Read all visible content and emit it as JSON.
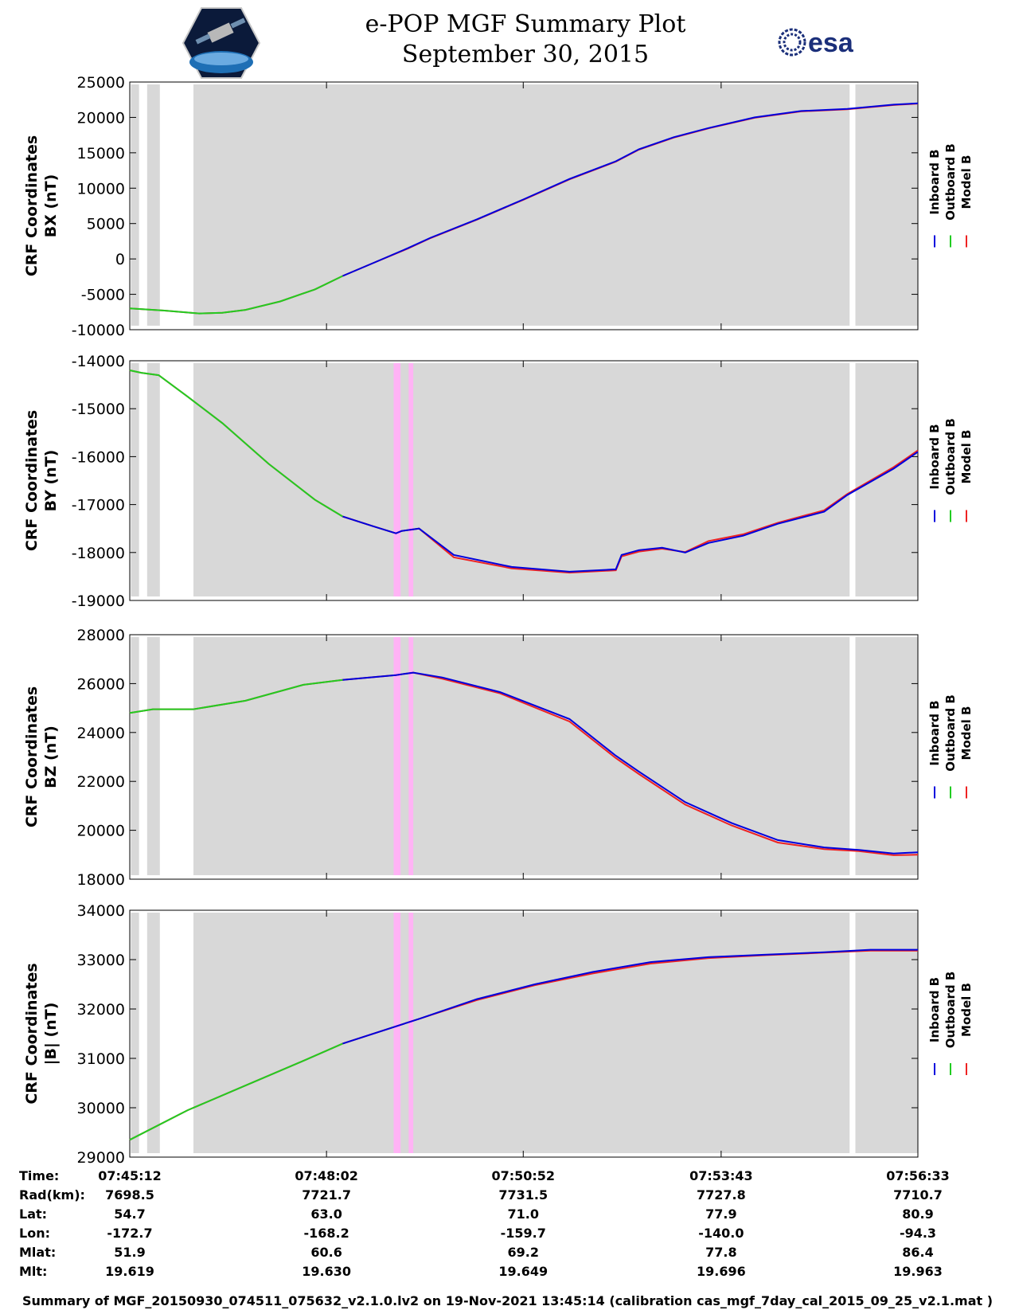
{
  "header": {
    "title": "e-POP MGF Summary Plot",
    "date": "September 30, 2015",
    "left_logo_icon": "satellite-logo-icon",
    "right_logo_icon": "esa-logo-icon",
    "right_logo_text": "esa"
  },
  "colors": {
    "inboard": "#0000dd",
    "outboard": "#22cc22",
    "model": "#ee2222",
    "shade": "#d8d8d8",
    "flag": "#ffb3f5"
  },
  "chart_data": {
    "type": "line",
    "x_unit": "seconds since 07:45:12",
    "x_range": [
      0,
      681
    ],
    "x_ticks": [
      0,
      170,
      340,
      511,
      681
    ],
    "x_tick_labels": [
      "07:45:12",
      "07:48:02",
      "07:50:52",
      "07:53:43",
      "07:56:33"
    ],
    "shaded_intervals": [
      [
        1,
        8
      ],
      [
        15,
        26
      ],
      [
        55,
        622
      ],
      [
        627,
        681
      ]
    ],
    "flagged_intervals": [
      [
        228,
        234
      ],
      [
        241,
        245
      ]
    ],
    "outboard_only_until": 184,
    "legend": [
      "Inboard B",
      "Outboard B",
      "Model B"
    ],
    "panels": [
      {
        "id": "bx",
        "ylabel_lines": [
          "CRF Coordinates",
          "BX (nT)"
        ],
        "ylim": [
          -10000,
          25000
        ],
        "y_ticks": [
          -10000,
          -5000,
          0,
          5000,
          10000,
          15000,
          20000,
          25000
        ],
        "y_tick_labels": [
          "-10000",
          "-5000",
          "0",
          "5000",
          "10000",
          "15000",
          "20000",
          "25000"
        ],
        "series": {
          "x": [
            0,
            30,
            60,
            80,
            100,
            130,
            160,
            184,
            210,
            240,
            260,
            300,
            340,
            380,
            420,
            440,
            470,
            500,
            540,
            580,
            620,
            660,
            681
          ],
          "measured": [
            -7000,
            -7300,
            -7700,
            -7600,
            -7200,
            -6000,
            -4300,
            -2400,
            -600,
            1500,
            3000,
            5600,
            8400,
            11300,
            13800,
            15500,
            17200,
            18500,
            20000,
            20900,
            21200,
            21800,
            22000
          ],
          "model": [
            -7000,
            -7300,
            -7700,
            -7600,
            -7200,
            -6000,
            -4300,
            -2400,
            -600,
            1450,
            2950,
            5550,
            8350,
            11250,
            13750,
            15450,
            17150,
            18450,
            19950,
            20850,
            21150,
            21750,
            21950
          ]
        }
      },
      {
        "id": "by",
        "ylabel_lines": [
          "CRF Coordinates",
          "BY (nT)"
        ],
        "ylim": [
          -19000,
          -14000
        ],
        "y_ticks": [
          -19000,
          -18000,
          -17000,
          -16000,
          -15000,
          -14000
        ],
        "y_tick_labels": [
          "-19000",
          "-18000",
          "-17000",
          "-16000",
          "-15000",
          "-14000"
        ],
        "series": {
          "x": [
            0,
            10,
            25,
            50,
            80,
            120,
            160,
            184,
            210,
            230,
            235,
            250,
            280,
            330,
            380,
            420,
            425,
            440,
            460,
            480,
            500,
            530,
            560,
            600,
            620,
            660,
            681
          ],
          "measured": [
            -14200,
            -14250,
            -14300,
            -14750,
            -15300,
            -16150,
            -16900,
            -17250,
            -17450,
            -17600,
            -17550,
            -17500,
            -18050,
            -18300,
            -18400,
            -18350,
            -18050,
            -17950,
            -17900,
            -18000,
            -17800,
            -17650,
            -17400,
            -17150,
            -16800,
            -16250,
            -15900
          ],
          "model": [
            -14200,
            -14250,
            -14300,
            -14750,
            -15300,
            -16150,
            -16900,
            -17250,
            -17450,
            -17600,
            -17550,
            -17500,
            -18100,
            -18330,
            -18420,
            -18370,
            -18080,
            -17980,
            -17920,
            -17990,
            -17760,
            -17620,
            -17380,
            -17120,
            -16780,
            -16220,
            -15870
          ]
        }
      },
      {
        "id": "bz",
        "ylabel_lines": [
          "CRF Coordinates",
          "BZ (nT)"
        ],
        "ylim": [
          18000,
          28000
        ],
        "y_ticks": [
          18000,
          20000,
          22000,
          24000,
          26000,
          28000
        ],
        "y_tick_labels": [
          "18000",
          "20000",
          "22000",
          "24000",
          "26000",
          "28000"
        ],
        "series": {
          "x": [
            0,
            20,
            55,
            100,
            150,
            184,
            230,
            245,
            270,
            320,
            380,
            420,
            440,
            480,
            520,
            560,
            600,
            630,
            660,
            681
          ],
          "measured": [
            24800,
            24950,
            24950,
            25300,
            25950,
            26150,
            26350,
            26450,
            26250,
            25650,
            24550,
            23050,
            22400,
            21150,
            20300,
            19600,
            19300,
            19200,
            19050,
            19100
          ],
          "model": [
            24800,
            24950,
            24950,
            25300,
            25950,
            26150,
            26350,
            26450,
            26200,
            25600,
            24450,
            22950,
            22300,
            21050,
            20200,
            19500,
            19230,
            19150,
            18980,
            19000
          ]
        }
      },
      {
        "id": "bmag",
        "ylabel_lines": [
          "CRF Coordinates",
          "|B| (nT)"
        ],
        "ylim": [
          29000,
          34000
        ],
        "y_ticks": [
          29000,
          30000,
          31000,
          32000,
          33000,
          34000
        ],
        "y_tick_labels": [
          "29000",
          "30000",
          "31000",
          "32000",
          "33000",
          "34000"
        ],
        "series": {
          "x": [
            0,
            50,
            100,
            150,
            184,
            250,
            300,
            350,
            400,
            450,
            500,
            550,
            600,
            640,
            681
          ],
          "measured": [
            29350,
            29950,
            30450,
            30950,
            31300,
            31800,
            32200,
            32500,
            32750,
            32950,
            33050,
            33100,
            33150,
            33200,
            33200
          ],
          "model": [
            29350,
            29950,
            30450,
            30950,
            31300,
            31800,
            32180,
            32480,
            32720,
            32920,
            33030,
            33090,
            33140,
            33180,
            33180
          ]
        }
      }
    ]
  },
  "ephemeris": {
    "row_labels": [
      "Time:",
      "Rad(km):",
      "Lat:",
      "Lon:",
      "Mlat:",
      "Mlt:"
    ],
    "columns": [
      [
        "07:45:12",
        "7698.5",
        "54.7",
        "-172.7",
        "51.9",
        "19.619"
      ],
      [
        "07:48:02",
        "7721.7",
        "63.0",
        "-168.2",
        "60.6",
        "19.630"
      ],
      [
        "07:50:52",
        "7731.5",
        "71.0",
        "-159.7",
        "69.2",
        "19.649"
      ],
      [
        "07:53:43",
        "7727.8",
        "77.9",
        "-140.0",
        "77.8",
        "19.696"
      ],
      [
        "07:56:33",
        "7710.7",
        "80.9",
        "-94.3",
        "86.4",
        "19.963"
      ]
    ]
  },
  "footer": "Summary of MGF_20150930_074511_075632_v2.1.0.lv2 on 19-Nov-2021 13:45:14 (calibration cas_mgf_7day_cal_2015_09_25_v2.1.mat )"
}
